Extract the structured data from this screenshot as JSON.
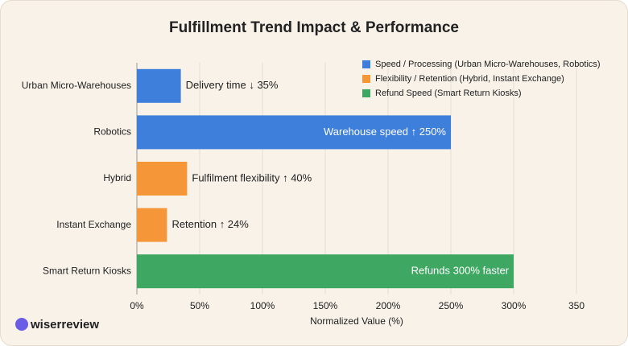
{
  "chart_data": {
    "type": "bar",
    "orientation": "horizontal",
    "title": "Fulfillment Trend Impact & Performance",
    "categories": [
      "Urban Micro-Warehouses",
      "Robotics",
      "Hybrid",
      "Instant Exchange",
      "Smart Return Kiosks"
    ],
    "values": [
      35,
      250,
      40,
      24,
      300
    ],
    "value_labels": [
      "Delivery time ↓ 35%",
      "Warehouse speed ↑ 250%",
      "Fulfilment flexibility ↑ 40%",
      "Retention ↑ 24%",
      "Refunds 300% faster"
    ],
    "colors": [
      "#3f7fdc",
      "#3f7fdc",
      "#f59638",
      "#f59638",
      "#3ea862"
    ],
    "legend": [
      {
        "name": "Speed / Processing (Urban Micro-Warehouses, Robotics)",
        "color": "#3f7fdc"
      },
      {
        "name": "Flexibility / Retention (Hybrid, Instant Exchange)",
        "color": "#f59638"
      },
      {
        "name": "Refund Speed (Smart Return Kiosks)",
        "color": "#3ea862"
      }
    ],
    "xlabel": "Normalized Value (%)",
    "xlim": [
      0,
      350
    ],
    "xticks": [
      {
        "value": 0,
        "label": "0%"
      },
      {
        "value": 50,
        "label": "50%"
      },
      {
        "value": 100,
        "label": "100%"
      },
      {
        "value": 150,
        "label": "150%"
      },
      {
        "value": 200,
        "label": "200%"
      },
      {
        "value": 250,
        "label": "250%"
      },
      {
        "value": 300,
        "label": "300%"
      },
      350
    ],
    "grid": true
  },
  "brand": "wiserreview"
}
